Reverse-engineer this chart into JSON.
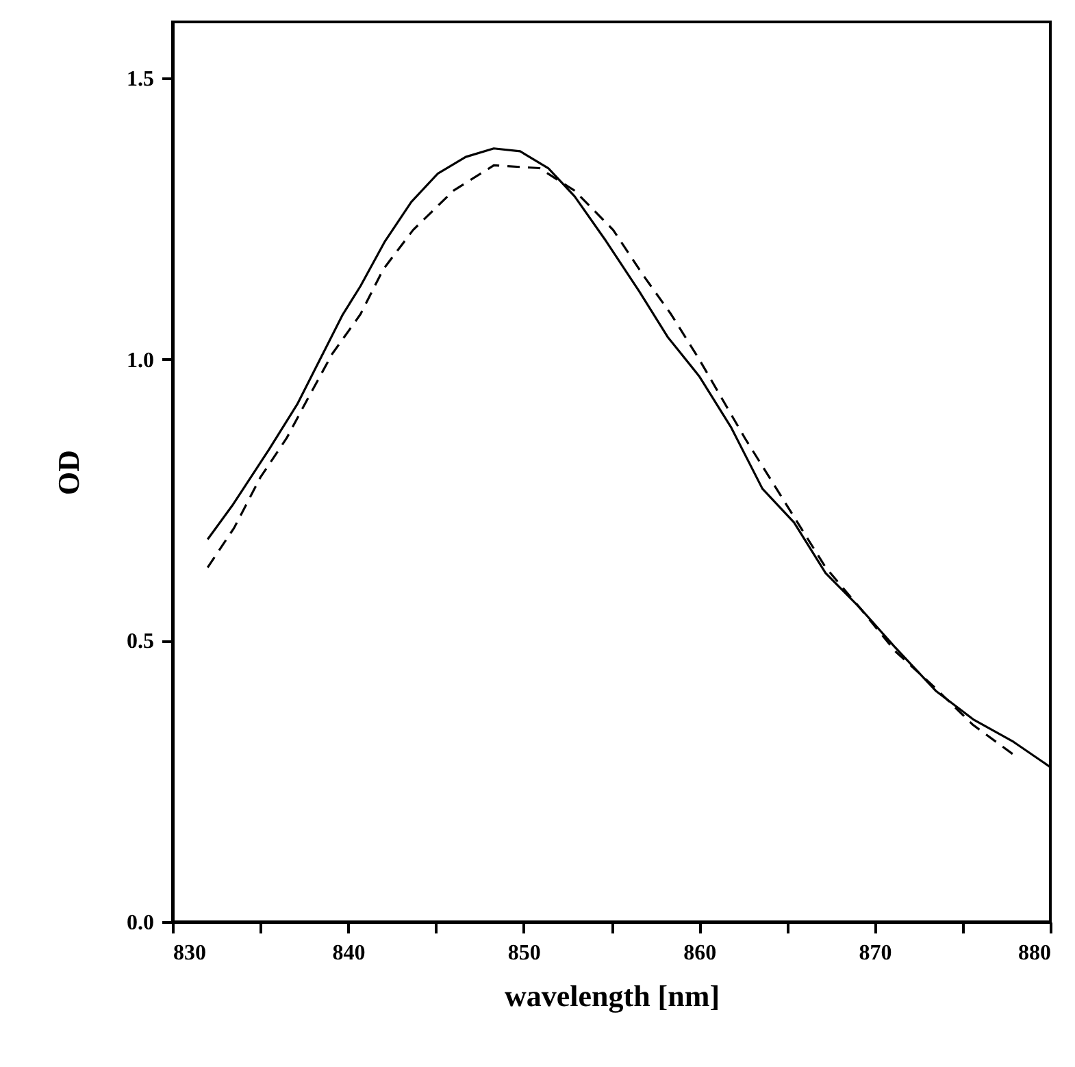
{
  "chart_data": {
    "type": "line",
    "xlabel": "wavelength [nm]",
    "ylabel": "OD",
    "xlim": [
      830,
      880
    ],
    "ylim": [
      0,
      1.6
    ],
    "xticks": [
      830,
      {
        "value": 835,
        "label": null
      },
      840,
      {
        "value": 845,
        "label": null
      },
      850,
      {
        "value": 855,
        "label": null
      },
      860,
      {
        "value": 865,
        "label": null
      },
      870,
      {
        "value": 875,
        "label": null
      },
      880
    ],
    "yticks": [
      {
        "value": 0,
        "label": "0.0"
      },
      0.5,
      {
        "value": 1,
        "label": "1.0"
      },
      1.5
    ],
    "grid": false,
    "marker": "none",
    "series": [
      {
        "color": "#000000",
        "line_style": "solid",
        "x": [
          832.0,
          833.4,
          835.5,
          837.1,
          838.4,
          839.7,
          840.7,
          842.1,
          843.6,
          845.1,
          846.7,
          848.3,
          849.8,
          851.4,
          852.9,
          854.7,
          856.6,
          858.2,
          860.0,
          861.8,
          863.6,
          865.4,
          867.2,
          869.1,
          871.1,
          873.5,
          875.6,
          877.9,
          880.0
        ],
        "values": [
          0.68,
          0.74,
          0.84,
          0.92,
          1.0,
          1.08,
          1.13,
          1.21,
          1.28,
          1.33,
          1.36,
          1.375,
          1.37,
          1.34,
          1.29,
          1.21,
          1.12,
          1.04,
          0.97,
          0.88,
          0.77,
          0.71,
          0.62,
          0.56,
          0.49,
          0.41,
          0.36,
          0.32,
          0.275
        ]
      },
      {
        "color": "#000000",
        "line_style": "dashed",
        "x": [
          832.0,
          833.5,
          835.0,
          836.5,
          837.7,
          839.1,
          840.7,
          842.0,
          843.7,
          846.0,
          848.3,
          850.9,
          852.9,
          855.1,
          856.8,
          858.4,
          860.0,
          861.3,
          862.6,
          864.2,
          865.8,
          867.2,
          869.1,
          871.2,
          873.3,
          875.6,
          878.0
        ],
        "values": [
          0.63,
          0.7,
          0.79,
          0.86,
          0.93,
          1.01,
          1.08,
          1.16,
          1.23,
          1.3,
          1.345,
          1.34,
          1.3,
          1.23,
          1.15,
          1.08,
          1.0,
          0.93,
          0.86,
          0.78,
          0.7,
          0.63,
          0.56,
          0.48,
          0.42,
          0.35,
          0.295
        ]
      }
    ]
  }
}
